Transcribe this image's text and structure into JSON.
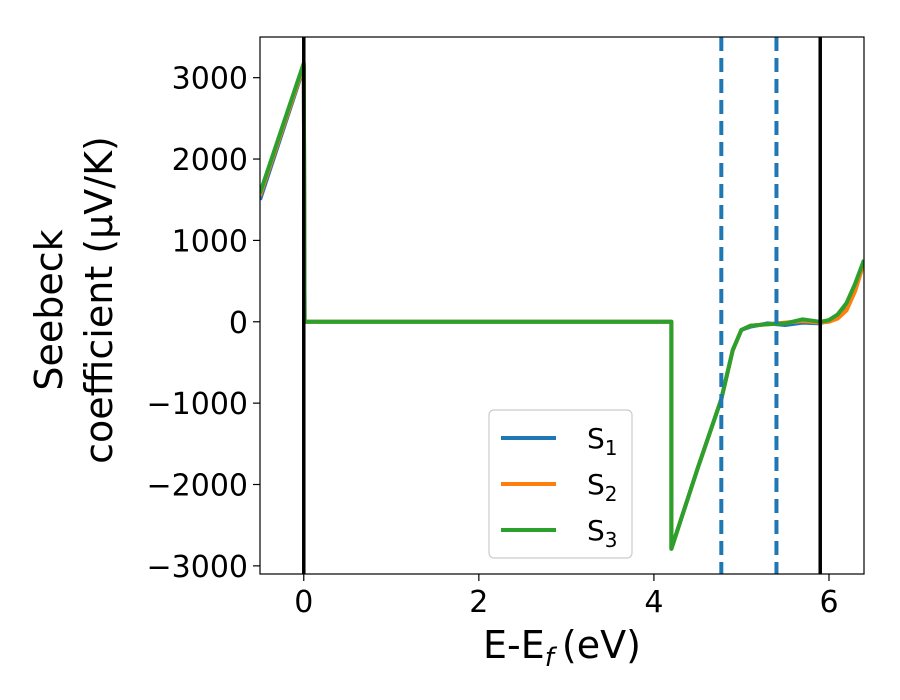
{
  "chart_data": {
    "type": "line",
    "xlabel": "E-E",
    "xlabel_sub": "f",
    "xlabel_unit": "(eV)",
    "ylabel_line1": "Seebeck",
    "ylabel_line2": "coefficient  (μV/K)",
    "xlim": [
      -0.5,
      6.4
    ],
    "ylim": [
      -3100,
      3500
    ],
    "xticks": [
      0,
      2,
      4,
      6
    ],
    "xtick_labels": [
      "0",
      "2",
      "4",
      "6"
    ],
    "yticks": [
      3000,
      2000,
      1000,
      0,
      -1000,
      -2000,
      -3000
    ],
    "ytick_labels": [
      "3000",
      "2000",
      "1000",
      "0",
      "−1000",
      "−2000",
      "−3000"
    ],
    "vlines_solid": [
      0.0,
      5.9
    ],
    "vlines_dashed": [
      4.77,
      5.4
    ],
    "legend_position": "lower center",
    "series": [
      {
        "name": "S",
        "sub": "1",
        "color": "#1f77b4",
        "points": [
          [
            -0.5,
            1500
          ],
          [
            0,
            3130
          ],
          [
            0.01,
            0
          ],
          [
            4.2,
            0
          ],
          [
            4.2,
            -2790
          ],
          [
            4.5,
            -1800
          ],
          [
            4.77,
            -950
          ],
          [
            4.9,
            -350
          ],
          [
            5.0,
            -100
          ],
          [
            5.1,
            -60
          ],
          [
            5.3,
            -20
          ],
          [
            5.5,
            -40
          ],
          [
            5.7,
            -10
          ],
          [
            5.9,
            -20
          ],
          [
            6.0,
            20
          ],
          [
            6.1,
            80
          ],
          [
            6.2,
            200
          ],
          [
            6.3,
            450
          ],
          [
            6.4,
            750
          ]
        ]
      },
      {
        "name": "S",
        "sub": "2",
        "color": "#ff7f0e",
        "points": [
          [
            -0.5,
            1550
          ],
          [
            0,
            3150
          ],
          [
            0.01,
            0
          ],
          [
            4.2,
            0
          ],
          [
            4.2,
            -2790
          ],
          [
            4.5,
            -1800
          ],
          [
            4.77,
            -950
          ],
          [
            4.9,
            -350
          ],
          [
            5.0,
            -100
          ],
          [
            5.1,
            -50
          ],
          [
            5.3,
            -30
          ],
          [
            5.5,
            -10
          ],
          [
            5.7,
            10
          ],
          [
            5.9,
            -10
          ],
          [
            6.0,
            0
          ],
          [
            6.1,
            40
          ],
          [
            6.2,
            140
          ],
          [
            6.3,
            380
          ],
          [
            6.4,
            730
          ]
        ]
      },
      {
        "name": "S",
        "sub": "3",
        "color": "#2ca02c",
        "points": [
          [
            -0.5,
            1580
          ],
          [
            0,
            3180
          ],
          [
            0.01,
            0
          ],
          [
            4.2,
            0
          ],
          [
            4.2,
            -2790
          ],
          [
            4.5,
            -1800
          ],
          [
            4.77,
            -950
          ],
          [
            4.9,
            -350
          ],
          [
            5.0,
            -100
          ],
          [
            5.1,
            -50
          ],
          [
            5.3,
            -30
          ],
          [
            5.5,
            -20
          ],
          [
            5.7,
            30
          ],
          [
            5.9,
            0
          ],
          [
            6.0,
            20
          ],
          [
            6.1,
            90
          ],
          [
            6.2,
            230
          ],
          [
            6.3,
            470
          ],
          [
            6.4,
            760
          ]
        ]
      }
    ]
  }
}
